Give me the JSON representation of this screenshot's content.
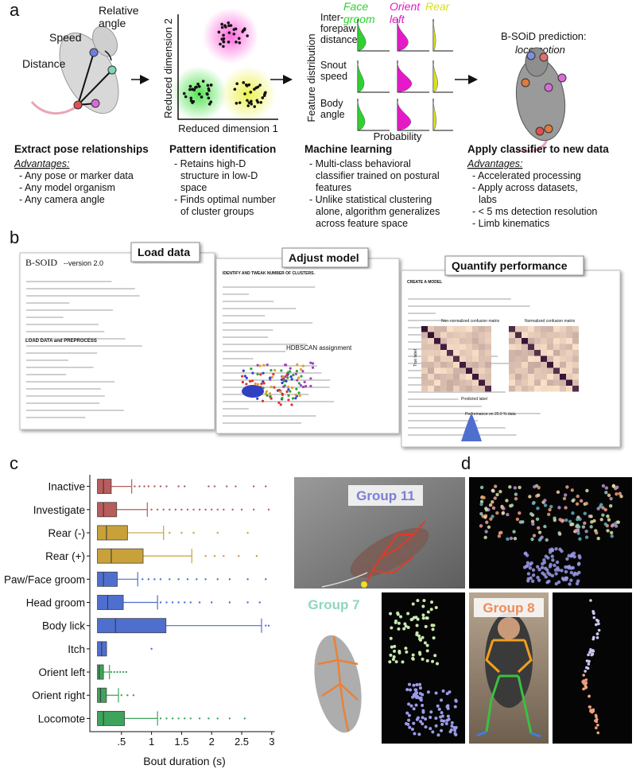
{
  "panel_a": {
    "label": "a",
    "pose_labels": [
      [
        "Relative",
        "angle"
      ],
      [
        "Speed"
      ],
      [
        "Distance"
      ]
    ],
    "scatter_axes": [
      "Reduced dimension 2",
      "Reduced dimension 1"
    ],
    "classes": [
      [
        "Face",
        "groom"
      ],
      [
        "Orient",
        "left"
      ],
      [
        "Rear"
      ]
    ],
    "features": [
      [
        "Inter-",
        "forepaw",
        "distance"
      ],
      [
        "Snout",
        "speed"
      ],
      [
        "Body",
        "angle"
      ]
    ],
    "distribution_axis": "Feature distribution",
    "probability_axis": "Probability",
    "prediction_title": "B-SOiD prediction:",
    "prediction": "locomotion",
    "steps": [
      {
        "title": "Extract pose relationships",
        "subtitle": "Advantages:",
        "lines": [
          "- Any pose or marker data",
          "- Any model organism",
          "- Any camera angle"
        ]
      },
      {
        "title": "Pattern identification",
        "lines": [
          "- Retains high-D",
          "structure in low-D",
          "space",
          "- Finds optimal number",
          "of cluster groups"
        ]
      },
      {
        "title": "Machine learning",
        "lines": [
          "- Multi-class behavioral",
          "classifier trained on postural",
          "features",
          "- Unlike statistical clustering",
          "alone, algorithm generalizes",
          "across feature space"
        ]
      },
      {
        "title": "Apply classifier to new data",
        "subtitle": "Advantages:",
        "lines": [
          "- Accelerated processing",
          "- Apply across datasets,",
          "labs",
          "- < 5 ms detection resolution",
          "- Limb kinematics"
        ]
      }
    ]
  },
  "panel_b": {
    "label": "b",
    "screens": [
      {
        "title": "Load data",
        "texts": [
          "B-SOID",
          "--version 2.0",
          "LOAD DATA and PREPROCESS"
        ]
      },
      {
        "title": "Adjust model",
        "texts": [
          "IDENTIFY AND TWEAK NUMBER OF CLUSTERS.",
          "HDBSCAN assignment"
        ]
      },
      {
        "title": "Quantify performance",
        "texts": [
          "CREATE A MODEL",
          "Non-normalized confusion matrix",
          "Normalized confusion matrix",
          "Predicted label",
          "True label",
          "Performance on 20.0 % data"
        ]
      }
    ]
  },
  "chart_data": {
    "type": "box",
    "panel_label": "c",
    "xlabel": "Bout duration (s)",
    "categories": [
      "Inactive",
      "Investigate",
      "Rear (-)",
      "Rear (+)",
      "Paw/Face groom",
      "Head groom",
      "Body lick",
      "Itch",
      "Orient left",
      "Orient right",
      "Locomote"
    ],
    "colors": [
      "#b85c5c",
      "#b85c5c",
      "#c9a13a",
      "#c9a13a",
      "#4f6fcf",
      "#4f6fcf",
      "#4f6fcf",
      "#4f6fcf",
      "#3ea35b",
      "#3ea35b",
      "#3ea35b"
    ],
    "whisker_low": [
      0.1,
      0.1,
      0.1,
      0.1,
      0.1,
      0.1,
      0.1,
      0.1,
      0.1,
      0.1,
      0.1
    ],
    "q1": [
      0.1,
      0.1,
      0.1,
      0.1,
      0.1,
      0.1,
      0.1,
      0.1,
      0.1,
      0.1,
      0.1
    ],
    "median": [
      0.2,
      0.2,
      0.25,
      0.33,
      0.2,
      0.27,
      0.4,
      0.17,
      0.13,
      0.15,
      0.2
    ],
    "q3": [
      0.33,
      0.42,
      0.6,
      0.86,
      0.43,
      0.53,
      1.24,
      0.25,
      0.2,
      0.25,
      0.55
    ],
    "whisker_high": [
      0.67,
      0.93,
      1.2,
      1.67,
      0.77,
      1.1,
      2.83,
      0.25,
      0.3,
      0.45,
      1.1
    ],
    "outliers": [
      [
        0.72,
        0.8,
        0.88,
        0.95,
        1.05,
        1.15,
        1.25,
        1.45,
        1.55,
        1.95,
        2.05,
        2.25,
        2.4,
        2.7,
        2.9
      ],
      [
        1.0,
        1.1,
        1.2,
        1.3,
        1.4,
        1.5,
        1.6,
        1.7,
        1.8,
        1.9,
        2.0,
        2.1,
        2.2,
        2.35,
        2.5,
        2.7,
        2.95
      ],
      [
        1.3,
        1.5,
        1.7,
        2.1,
        2.6
      ],
      [
        1.9,
        2.05,
        2.2,
        2.45,
        2.75
      ],
      [
        0.85,
        0.95,
        1.05,
        1.15,
        1.3,
        1.45,
        1.6,
        1.75,
        1.9,
        2.1,
        2.3,
        2.6,
        2.9
      ],
      [
        1.15,
        1.25,
        1.35,
        1.45,
        1.55,
        1.65,
        1.8,
        2.0,
        2.3,
        2.6,
        2.8
      ],
      [
        2.9,
        2.95
      ],
      [
        1.0
      ],
      [
        0.33,
        0.38,
        0.43,
        0.48,
        0.53,
        0.58
      ],
      [
        0.5,
        0.6,
        0.7
      ],
      [
        1.15,
        1.25,
        1.35,
        1.45,
        1.55,
        1.65,
        1.8,
        1.95,
        2.1,
        2.3,
        2.55
      ]
    ],
    "xlim": [
      0,
      3.05
    ],
    "xticks": [
      {
        "value": 0.5,
        "label": ".5"
      },
      1,
      1.5,
      2,
      2.5,
      3
    ]
  },
  "panel_d": {
    "label": "d",
    "groups": [
      "Group 11",
      "Group 7",
      "Group 8"
    ]
  }
}
